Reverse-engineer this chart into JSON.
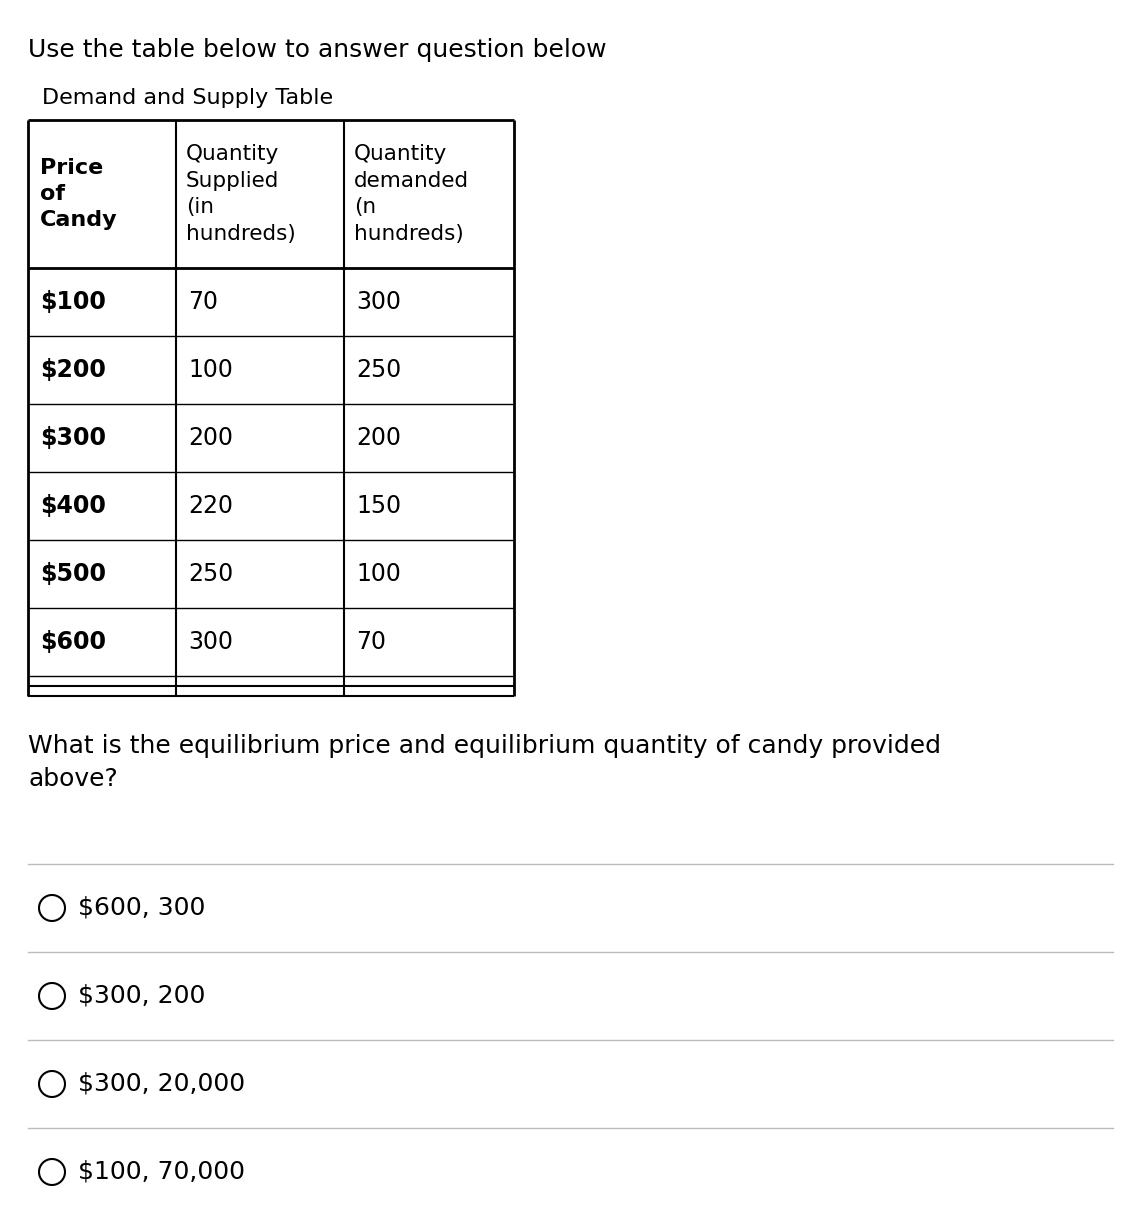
{
  "intro_text": "Use the table below to answer question below",
  "table_title": "Demand and Supply Table",
  "col0_header": "Price\nof\nCandy",
  "col1_header": "Quantity\nSupplied\n(in\nhundreds)",
  "col2_header": "Quantity\ndemanded\n(n\nhundreds)",
  "rows": [
    [
      "$100",
      "70",
      "300"
    ],
    [
      "$200",
      "100",
      "250"
    ],
    [
      "$300",
      "200",
      "200"
    ],
    [
      "$400",
      "220",
      "150"
    ],
    [
      "$500",
      "250",
      "100"
    ],
    [
      "$600",
      "300",
      "70"
    ]
  ],
  "question_text": "What is the equilibrium price and equilibrium quantity of candy provided\nabove?",
  "options": [
    "$600, 300",
    "$300, 200",
    "$300, 20,000",
    "$100, 70,000"
  ],
  "bg_color": "#ffffff",
  "text_color": "#000000",
  "border_color": "#000000",
  "divider_color": "#bbbbbb"
}
